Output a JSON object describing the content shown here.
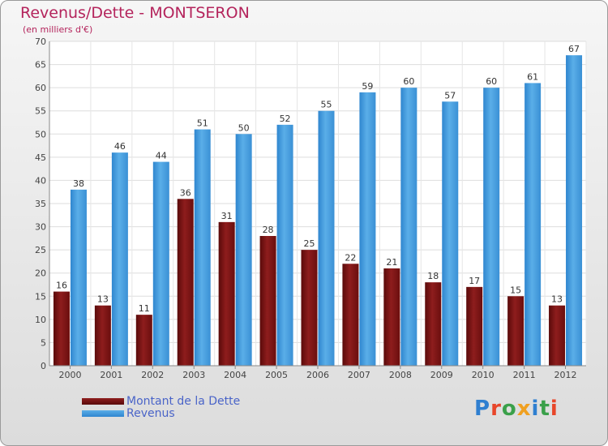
{
  "title": "Revenus/Dette - MONTSERON",
  "subtitle": "(en milliers d'€)",
  "logo": "Proxiti",
  "colors": {
    "dette": "#7b1212",
    "revenus": "#3d95d8",
    "title": "#b4245c",
    "legend_text": "#4a64c8"
  },
  "chart_data": {
    "type": "bar",
    "title": "Revenus/Dette - MONTSERON",
    "subtitle": "(en milliers d'€)",
    "categories": [
      "2000",
      "2001",
      "2002",
      "2003",
      "2004",
      "2005",
      "2006",
      "2007",
      "2008",
      "2009",
      "2010",
      "2011",
      "2012"
    ],
    "series": [
      {
        "name": "Montant de la Dette",
        "values": [
          16,
          13,
          11,
          36,
          31,
          28,
          25,
          22,
          21,
          18,
          17,
          15,
          13
        ]
      },
      {
        "name": "Revenus",
        "values": [
          38,
          46,
          44,
          51,
          50,
          52,
          55,
          59,
          60,
          57,
          60,
          61,
          67
        ]
      }
    ],
    "ylim": [
      0,
      70
    ],
    "yticks": [
      0,
      5,
      10,
      15,
      20,
      25,
      30,
      35,
      40,
      45,
      50,
      55,
      60,
      65,
      70
    ],
    "grid": true,
    "legend": "bottom-left"
  }
}
